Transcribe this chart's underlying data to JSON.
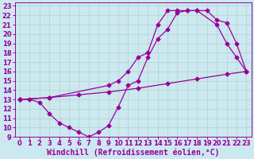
{
  "xlabel": "Windchill (Refroidissement éolien,°C)",
  "bg_color": "#cce8f0",
  "grid_color": "#b0d4c8",
  "line_color": "#990099",
  "marker": "D",
  "markersize": 2.5,
  "linewidth": 0.9,
  "xlim": [
    -0.5,
    23.5
  ],
  "ylim": [
    9,
    23.4
  ],
  "xticks": [
    0,
    1,
    2,
    3,
    4,
    5,
    6,
    7,
    8,
    9,
    10,
    11,
    12,
    13,
    14,
    15,
    16,
    17,
    18,
    19,
    20,
    21,
    22,
    23
  ],
  "yticks": [
    9,
    10,
    11,
    12,
    13,
    14,
    15,
    16,
    17,
    18,
    19,
    20,
    21,
    22,
    23
  ],
  "curves": [
    {
      "x": [
        0,
        1,
        2,
        3,
        4,
        5,
        6,
        7,
        8,
        9,
        10,
        11,
        12,
        13,
        14,
        15,
        16,
        17,
        18,
        20,
        21,
        22,
        23
      ],
      "y": [
        13,
        13,
        12.7,
        11.5,
        10.5,
        10.0,
        9.5,
        9.0,
        9.5,
        10.2,
        12.2,
        14.5,
        15.0,
        17.5,
        19.5,
        20.5,
        22.3,
        22.5,
        22.5,
        21.0,
        19.0,
        17.5,
        16.0
      ]
    },
    {
      "x": [
        0,
        3,
        6,
        9,
        12,
        15,
        18,
        21,
        23
      ],
      "y": [
        13.0,
        13.2,
        13.5,
        13.8,
        14.2,
        14.7,
        15.2,
        15.7,
        16.0
      ]
    },
    {
      "x": [
        0,
        3,
        9,
        10,
        11,
        12,
        13,
        14,
        15,
        16,
        17,
        18,
        19,
        20,
        21,
        22,
        23
      ],
      "y": [
        13.0,
        13.2,
        14.5,
        15.0,
        16.0,
        17.5,
        18.0,
        21.0,
        22.5,
        22.5,
        22.5,
        22.5,
        22.5,
        21.5,
        21.2,
        19.0,
        16.0
      ]
    }
  ],
  "fontsize_xlabel": 7,
  "fontsize_ticks": 6
}
